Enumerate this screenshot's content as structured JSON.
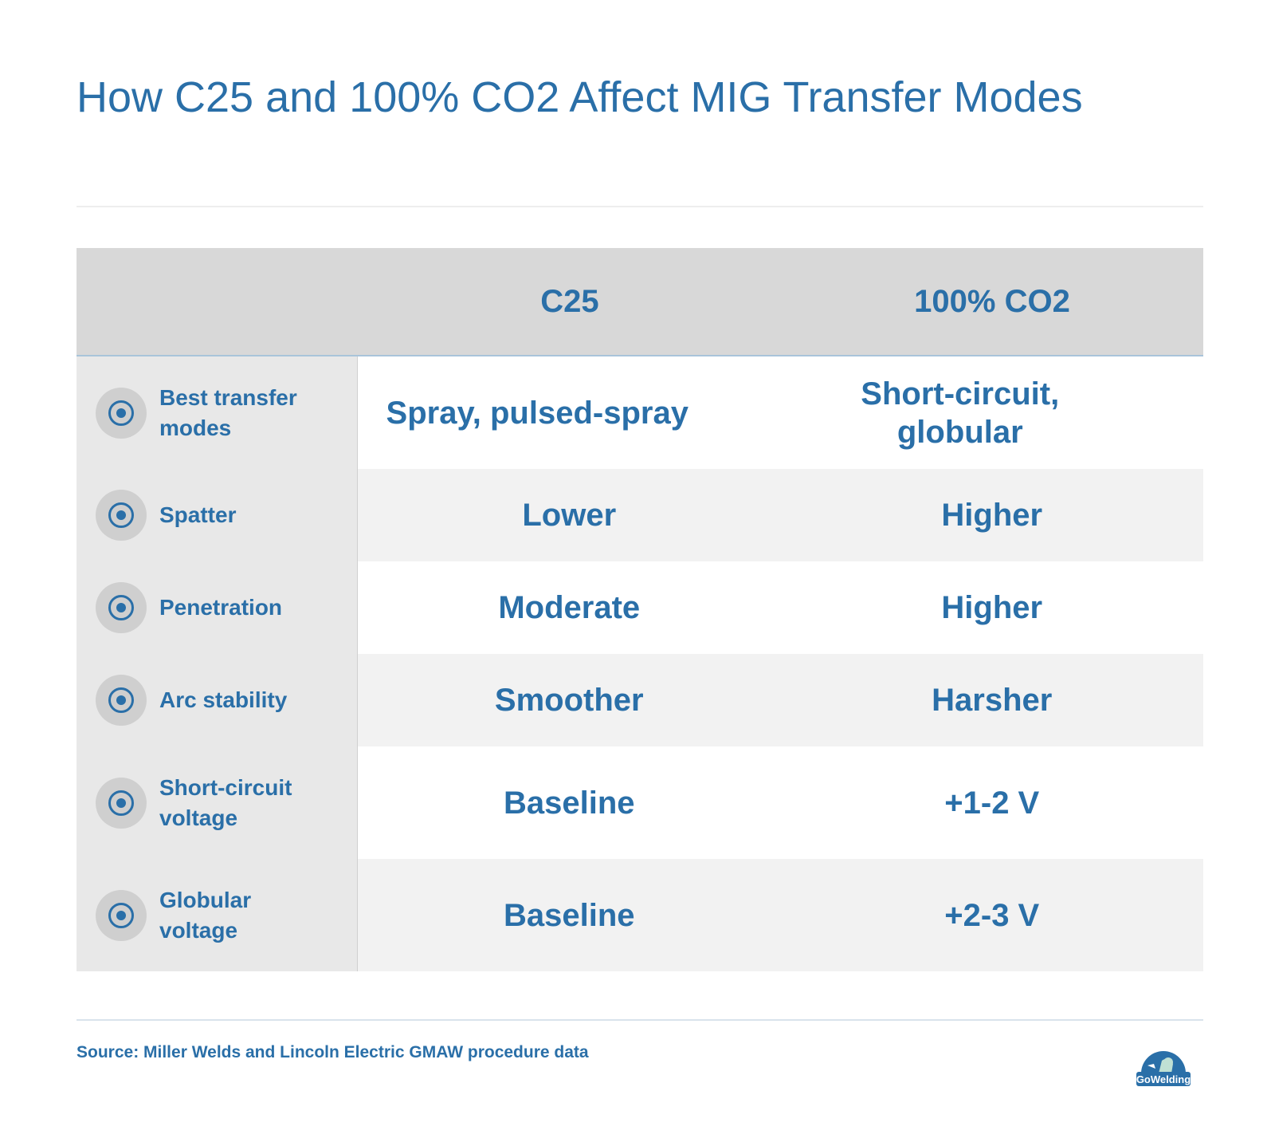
{
  "title": "How C25 and 100% CO2 Affect MIG Transfer Modes",
  "table": {
    "columns": [
      "",
      "C25",
      "100% CO2"
    ],
    "rows": [
      {
        "label": "Best transfer modes",
        "c25": "Spray, pulsed-spray",
        "co2": "Short-circuit, globular"
      },
      {
        "label": "Spatter",
        "c25": "Lower",
        "co2": "Higher"
      },
      {
        "label": "Penetration",
        "c25": "Moderate",
        "co2": "Higher"
      },
      {
        "label": "Arc stability",
        "c25": "Smoother",
        "co2": "Harsher"
      },
      {
        "label": "Short-circuit voltage",
        "c25": "Baseline",
        "co2": "+1-2 V"
      },
      {
        "label": "Globular voltage",
        "c25": "Baseline",
        "co2": "+2-3 V"
      }
    ],
    "row_icon": "target-bullet-icon"
  },
  "source": "Source: Miller Welds and Lincoln Electric GMAW procedure data",
  "logo": {
    "text": "GoWelding",
    "icon": "gowelding-logo"
  },
  "colors": {
    "accent": "#2a6fa8",
    "header_bg": "#d8d8d8",
    "label_bg": "#e8e8e8",
    "alt_row_bg": "#f2f2f2",
    "header_border": "#a9c4da"
  }
}
